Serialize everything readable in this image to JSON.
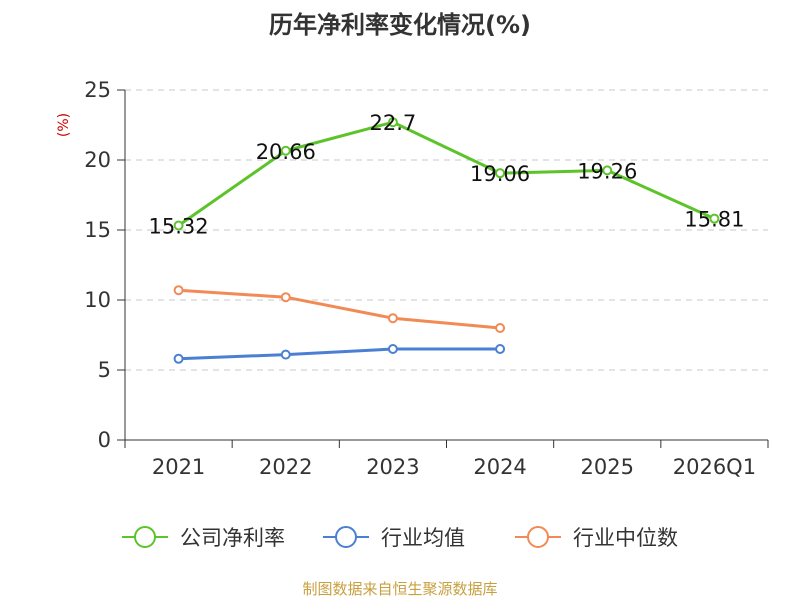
{
  "chart_data": {
    "type": "line",
    "title": "历年净利率变化情况(%)",
    "ylabel": "(%)",
    "categories": [
      "2021",
      "2022",
      "2023",
      "2024",
      "2025",
      "2026Q1"
    ],
    "ylim": [
      0,
      25
    ],
    "yticks": [
      0,
      5,
      10,
      15,
      20,
      25
    ],
    "grid": true,
    "legend_position": "bottom",
    "series": [
      {
        "name": "公司净利率",
        "color": "#5cc42a",
        "values": [
          15.32,
          20.66,
          22.7,
          19.06,
          19.26,
          15.81
        ],
        "labels": [
          "15.32",
          "20.66",
          "22.7",
          "19.06",
          "19.26",
          "15.81"
        ]
      },
      {
        "name": "行业均值",
        "color": "#4a7fd4",
        "values": [
          5.8,
          6.1,
          6.5,
          6.5,
          null,
          null
        ]
      },
      {
        "name": "行业中位数",
        "color": "#f28a55",
        "values": [
          10.7,
          10.2,
          8.7,
          8.0,
          null,
          null
        ]
      }
    ],
    "source": "制图数据来自恒生聚源数据库"
  }
}
